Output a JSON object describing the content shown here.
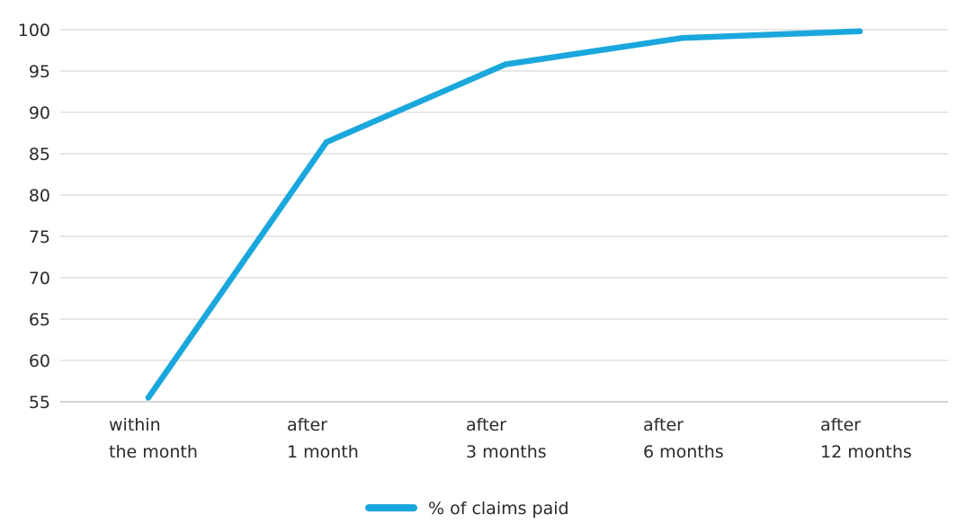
{
  "chart_data": {
    "type": "line",
    "categories": [
      [
        "within",
        "the month"
      ],
      [
        "after",
        "1 month"
      ],
      [
        "after",
        "3 months"
      ],
      [
        "after",
        "6 months"
      ],
      [
        "after",
        "12 months"
      ]
    ],
    "series": [
      {
        "name": "% of claims paid",
        "values": [
          55.5,
          86.4,
          95.8,
          99.0,
          99.8
        ],
        "color": "#1aa7dd"
      }
    ],
    "y_ticks": [
      55,
      60,
      65,
      70,
      75,
      80,
      85,
      90,
      95,
      100
    ],
    "ylim": [
      55,
      100
    ],
    "grid": true,
    "legend_position": "bottom-center",
    "title": "",
    "xlabel": "",
    "ylabel": ""
  }
}
